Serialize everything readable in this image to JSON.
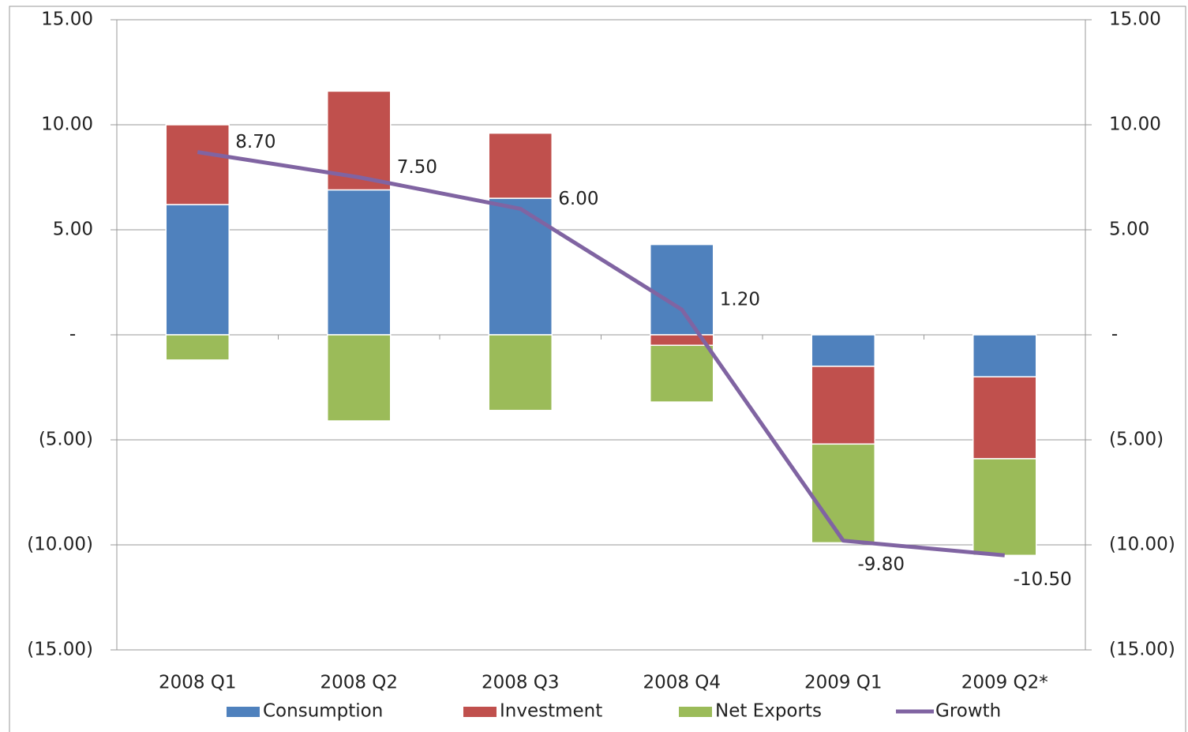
{
  "chart_data": {
    "type": "bar",
    "categories": [
      "2008 Q1",
      "2008 Q2",
      "2008 Q3",
      "2008 Q4",
      "2009 Q1",
      "2009 Q2*"
    ],
    "stacked": true,
    "series": [
      {
        "name": "Consumption",
        "color": "#4f81bd",
        "values": [
          6.2,
          6.9,
          6.5,
          4.3,
          -1.5,
          -2.0
        ]
      },
      {
        "name": "Investment",
        "color": "#c0504d",
        "values": [
          3.8,
          4.7,
          3.1,
          -0.5,
          -3.7,
          -3.9
        ]
      },
      {
        "name": "Net Exports",
        "color": "#9bbb59",
        "values": [
          -1.2,
          -4.1,
          -3.6,
          -2.7,
          -4.7,
          -4.6
        ]
      },
      {
        "name": "Growth",
        "color": "#8064a2",
        "type": "line",
        "axis": "y2",
        "values": [
          8.7,
          7.5,
          6.0,
          1.2,
          -9.8,
          -10.5
        ],
        "value_labels": [
          "8.70",
          "7.50",
          "6.00",
          "1.20",
          "-9.80",
          "-10.50"
        ]
      }
    ],
    "ylim": [
      -15,
      15
    ],
    "yticks": [
      {
        "value": 15,
        "label": "15.00"
      },
      {
        "value": 10,
        "label": "10.00"
      },
      {
        "value": 5,
        "label": "5.00"
      },
      {
        "value": 0,
        "label": "-"
      },
      {
        "value": -5,
        "label": "(5.00)"
      },
      {
        "value": -10,
        "label": "(10.00)"
      },
      {
        "value": -15,
        "label": "(15.00)"
      }
    ],
    "y2lim": [
      -15,
      15
    ],
    "y2ticks": [
      {
        "value": 15,
        "label": "15.00"
      },
      {
        "value": 10,
        "label": "10.00"
      },
      {
        "value": 5,
        "label": "5.00"
      },
      {
        "value": 0,
        "label": "-"
      },
      {
        "value": -5,
        "label": "(5.00)"
      },
      {
        "value": -10,
        "label": "(10.00)"
      },
      {
        "value": -15,
        "label": "(15.00)"
      }
    ],
    "grid": true,
    "legend": "bottom"
  }
}
